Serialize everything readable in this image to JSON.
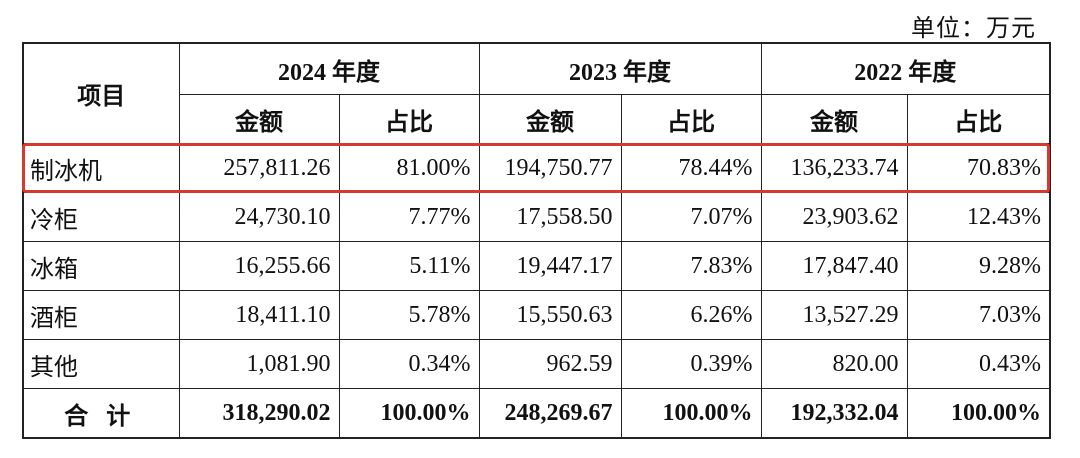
{
  "unit_label": "单位：万元",
  "table": {
    "item_header": "项目",
    "years": [
      "2024 年度",
      "2023 年度",
      "2022 年度"
    ],
    "sub_headers": {
      "amount": "金额",
      "ratio": "占比"
    },
    "rows": [
      {
        "name": "制冰机",
        "v2024": "257,811.26",
        "p2024": "81.00%",
        "v2023": "194,750.77",
        "p2023": "78.44%",
        "v2022": "136,233.74",
        "p2022": "70.83%"
      },
      {
        "name": "冷柜",
        "v2024": "24,730.10",
        "p2024": "7.77%",
        "v2023": "17,558.50",
        "p2023": "7.07%",
        "v2022": "23,903.62",
        "p2022": "12.43%"
      },
      {
        "name": "冰箱",
        "v2024": "16,255.66",
        "p2024": "5.11%",
        "v2023": "19,447.17",
        "p2023": "7.83%",
        "v2022": "17,847.40",
        "p2022": "9.28%"
      },
      {
        "name": "酒柜",
        "v2024": "18,411.10",
        "p2024": "5.78%",
        "v2023": "15,550.63",
        "p2023": "6.26%",
        "v2022": "13,527.29",
        "p2022": "7.03%"
      },
      {
        "name": "其他",
        "v2024": "1,081.90",
        "p2024": "0.34%",
        "v2023": "962.59",
        "p2023": "0.39%",
        "v2022": "820.00",
        "p2022": "0.43%"
      }
    ],
    "total": {
      "name": "合计",
      "v2024": "318,290.02",
      "p2024": "100.00%",
      "v2023": "248,269.67",
      "p2023": "100.00%",
      "v2022": "192,332.04",
      "p2022": "100.00%"
    }
  },
  "highlight_color": "#d8392f"
}
